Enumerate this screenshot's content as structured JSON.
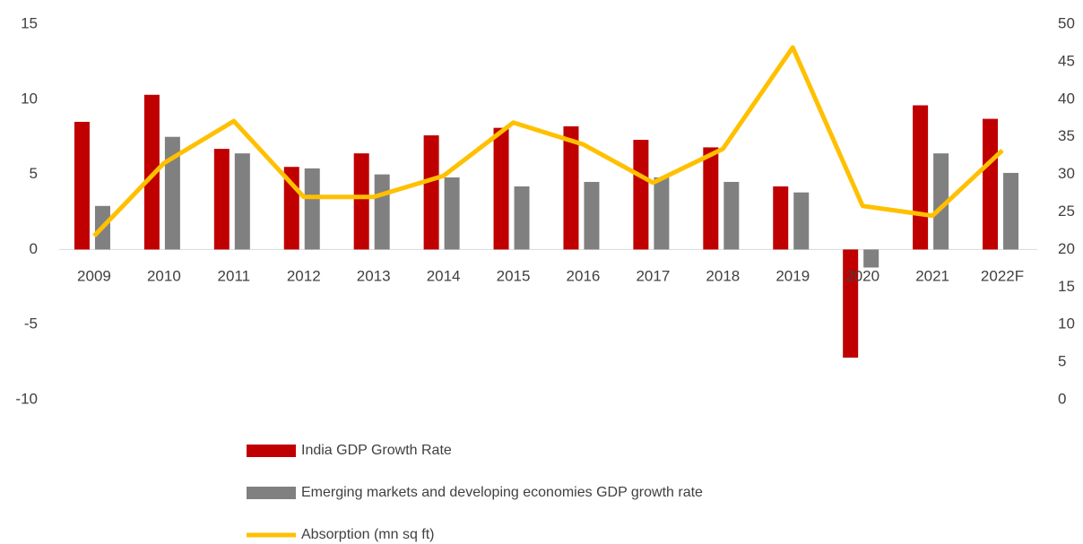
{
  "chart_data": {
    "type": "bar_line",
    "categories": [
      "2009",
      "2010",
      "2011",
      "2012",
      "2013",
      "2014",
      "2015",
      "2016",
      "2017",
      "2018",
      "2019",
      "2020",
      "2021",
      "2022F"
    ],
    "series": [
      {
        "name": "India GDP Growth Rate",
        "type": "bar",
        "color": "#c00000",
        "values": [
          8.5,
          10.3,
          6.7,
          5.5,
          6.4,
          7.6,
          8.1,
          8.2,
          7.3,
          6.8,
          4.2,
          -7.2,
          9.6,
          8.7
        ]
      },
      {
        "name": "Emerging markets and developing economies GDP growth rate",
        "type": "bar",
        "color": "#808080",
        "values": [
          2.9,
          7.5,
          6.4,
          5.4,
          5.0,
          4.8,
          4.2,
          4.5,
          4.8,
          4.5,
          3.8,
          -1.2,
          6.4,
          5.1
        ]
      },
      {
        "name": "Absorption (mn sq ft)",
        "type": "line",
        "axis": "y2",
        "color": "#ffc000",
        "values": [
          21.8,
          31.5,
          37.1,
          27,
          27,
          29.8,
          36.9,
          34,
          28.9,
          33.4,
          46.9,
          25.8,
          24.5,
          33.2
        ]
      }
    ],
    "ylim": [
      -10,
      15
    ],
    "yticks": [
      -10,
      -5,
      0,
      5,
      10,
      15
    ],
    "y2lim": [
      0,
      50
    ],
    "y2ticks": [
      0,
      5,
      10,
      15,
      20,
      25,
      30,
      35,
      40,
      45,
      50
    ],
    "grid": false,
    "legend": "bottom"
  }
}
